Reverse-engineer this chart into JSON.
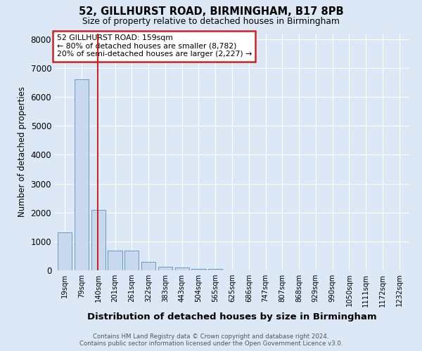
{
  "title1": "52, GILLHURST ROAD, BIRMINGHAM, B17 8PB",
  "title2": "Size of property relative to detached houses in Birmingham",
  "xlabel": "Distribution of detached houses by size in Birmingham",
  "ylabel": "Number of detached properties",
  "annotation_line1": "52 GILLHURST ROAD: 159sqm",
  "annotation_line2": "← 80% of detached houses are smaller (8,782)",
  "annotation_line3": "20% of semi-detached houses are larger (2,227) →",
  "footer1": "Contains HM Land Registry data © Crown copyright and database right 2024.",
  "footer2": "Contains public sector information licensed under the Open Government Licence v3.0.",
  "bar_color": "#c8d9ee",
  "bar_edge_color": "#6699cc",
  "red_line_color": "#cc2222",
  "red_line_x": 159,
  "categories": [
    "19sqm",
    "79sqm",
    "140sqm",
    "201sqm",
    "261sqm",
    "322sqm",
    "383sqm",
    "443sqm",
    "504sqm",
    "565sqm",
    "625sqm",
    "686sqm",
    "747sqm",
    "807sqm",
    "868sqm",
    "929sqm",
    "990sqm",
    "1050sqm",
    "1111sqm",
    "1172sqm",
    "1232sqm"
  ],
  "bin_edges": [
    19,
    79,
    140,
    201,
    261,
    322,
    383,
    443,
    504,
    565,
    625,
    686,
    747,
    807,
    868,
    929,
    990,
    1050,
    1111,
    1172,
    1232
  ],
  "values": [
    1300,
    6600,
    2100,
    680,
    680,
    300,
    130,
    100,
    50,
    50,
    0,
    0,
    0,
    0,
    0,
    0,
    0,
    0,
    0,
    0,
    0
  ],
  "ylim": [
    0,
    8200
  ],
  "yticks": [
    0,
    1000,
    2000,
    3000,
    4000,
    5000,
    6000,
    7000,
    8000
  ],
  "background_color": "#dce8f5",
  "plot_bg_color": "#dce8f5",
  "grid_color": "#ffffff",
  "annotation_box_color": "#ffffff",
  "annotation_box_edge": "#cc2222"
}
